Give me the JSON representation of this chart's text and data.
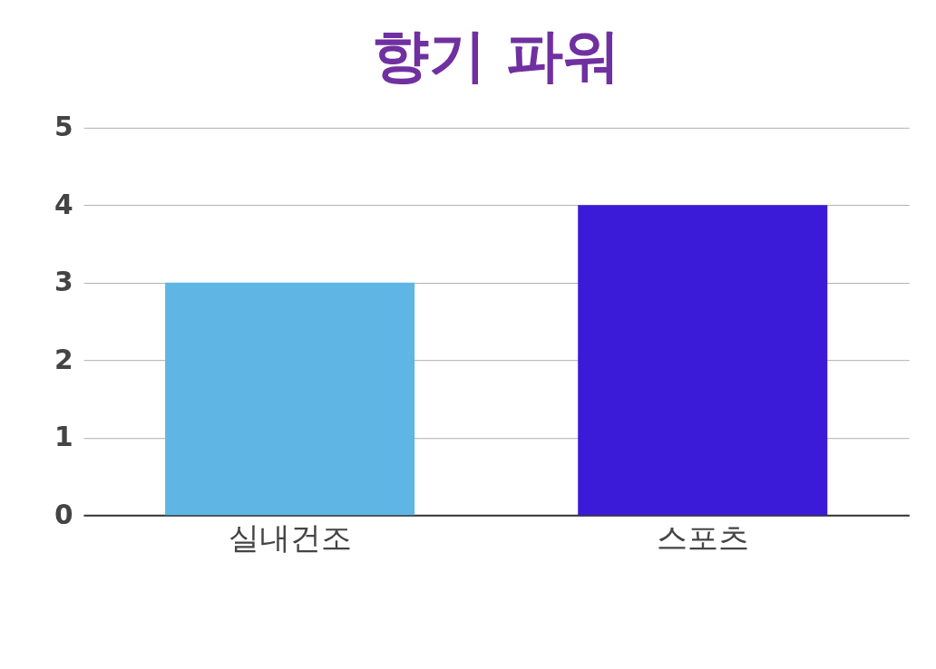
{
  "chart_data": {
    "type": "bar",
    "title": "향기 파워",
    "categories": [
      "실내건조",
      "스포츠"
    ],
    "values": [
      3,
      4
    ],
    "colors": [
      "#5fb6e5",
      "#3b1ad8"
    ],
    "ylim": [
      0,
      5
    ],
    "yticks": [
      0,
      1,
      2,
      3,
      4,
      5
    ],
    "grid": "y"
  }
}
